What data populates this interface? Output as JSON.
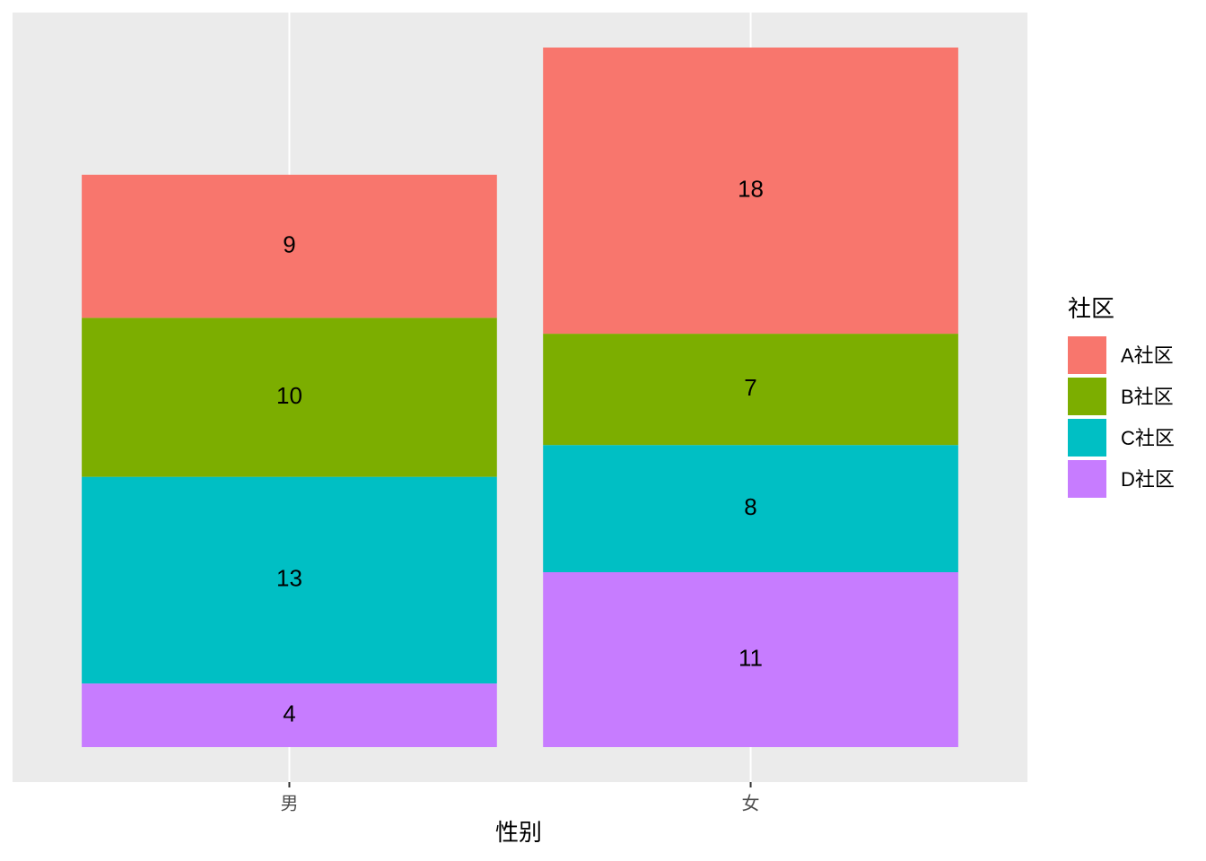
{
  "chart_data": {
    "type": "stacked_bar",
    "x_label": "性别",
    "legend_title": "社区",
    "categories": [
      "男",
      "女"
    ],
    "series": [
      {
        "name": "A社区",
        "color": "#F8766D",
        "values": [
          9,
          18
        ]
      },
      {
        "name": "B社区",
        "color": "#7CAE00",
        "values": [
          10,
          7
        ]
      },
      {
        "name": "C社区",
        "color": "#00BFC4",
        "values": [
          13,
          8
        ]
      },
      {
        "name": "D社区",
        "color": "#C77CFF",
        "values": [
          4,
          11
        ]
      }
    ],
    "ylim": [
      -2.2,
      46.2
    ],
    "grid": true,
    "legend": "right"
  }
}
